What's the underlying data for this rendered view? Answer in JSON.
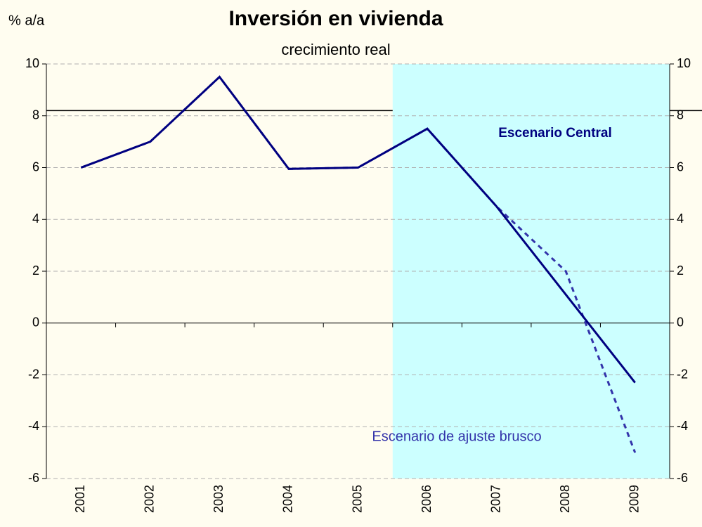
{
  "chart_data": {
    "type": "line",
    "title": "Inversión en vivienda",
    "subtitle": "crecimiento real",
    "y_label": "% a/a",
    "categories": [
      "2001",
      "2002",
      "2003",
      "2004",
      "2005",
      "2006",
      "2007",
      "2008",
      "2009"
    ],
    "series": [
      {
        "name": "Escenario Central",
        "color": "#000080",
        "dash": false,
        "values": [
          6,
          7,
          9.5,
          5.95,
          6,
          7.5,
          4.5,
          1.1,
          -2.3
        ]
      },
      {
        "name": "Escenario de ajuste brusco",
        "color": "#3333aa",
        "dash": true,
        "values": [
          6,
          7,
          9.5,
          5.95,
          6,
          7.5,
          4.5,
          2.0,
          -5.0
        ]
      }
    ],
    "ylim": [
      -6,
      10
    ],
    "yticks": [
      -6,
      -4,
      -2,
      0,
      2,
      4,
      6,
      8,
      10
    ],
    "y2lim": [
      -6,
      10
    ],
    "y2ticks": [
      -6,
      -4,
      -2,
      0,
      2,
      4,
      6,
      8,
      10
    ],
    "grid": true,
    "reference_line": 8.2,
    "highlight": {
      "from": "2006",
      "to": "2009",
      "color": "#ccffff"
    },
    "background": "#fffdf0"
  }
}
